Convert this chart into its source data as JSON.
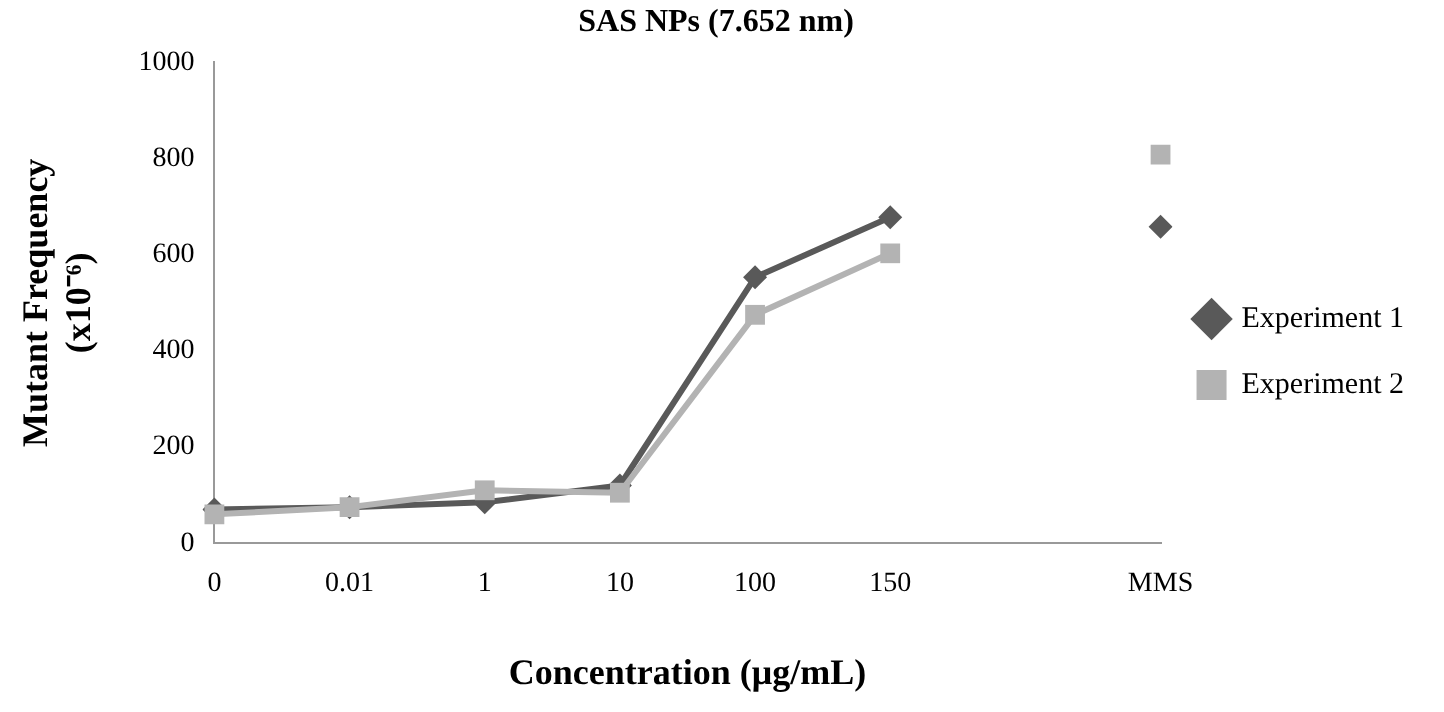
{
  "chart_data": {
    "type": "line",
    "title": "SAS NPs (7.652 nm)",
    "xlabel": "Concentration (μg/mL)",
    "ylabel": "Mutant Frequency\n(x10⁻⁶)",
    "categories": [
      "0",
      "0.01",
      "1",
      "10",
      "100",
      "150",
      null,
      "MMS"
    ],
    "series": [
      {
        "name": "Experiment 1",
        "color": "#595959",
        "marker": "diamond",
        "values": [
          70,
          75,
          85,
          120,
          553,
          678,
          null,
          658
        ]
      },
      {
        "name": "Experiment 2",
        "color": "#b3b3b3",
        "marker": "square",
        "values": [
          60,
          75,
          110,
          105,
          475,
          603,
          null,
          808
        ]
      }
    ],
    "ylim": [
      0,
      1000
    ],
    "yticks": [
      0,
      200,
      400,
      600,
      800,
      1000
    ],
    "grid": false,
    "legend": "right",
    "line_style": "solid"
  }
}
